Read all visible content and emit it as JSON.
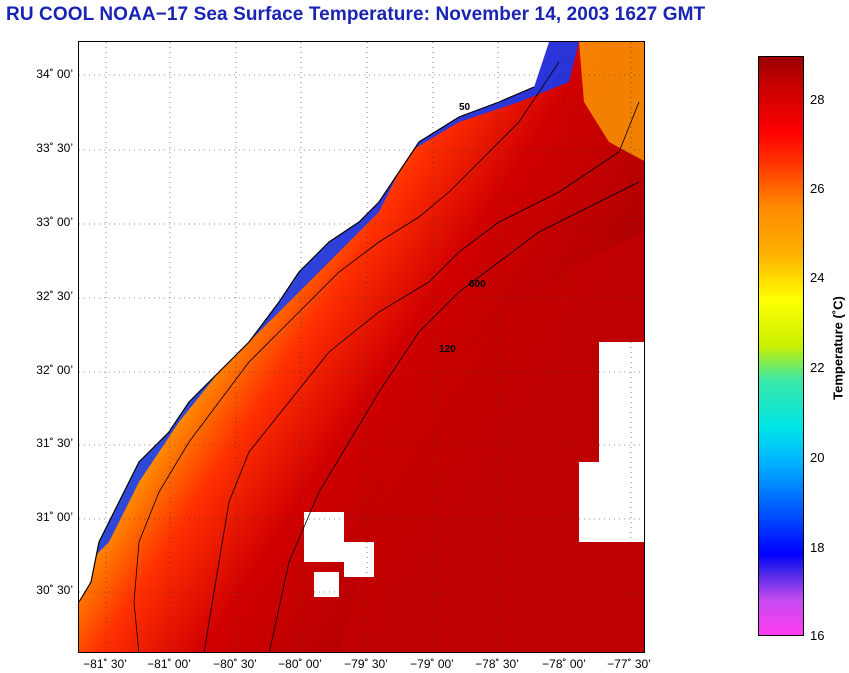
{
  "title": "RU COOL  NOAA−17  Sea Surface Temperature:  November 14, 2003 1627 GMT",
  "map": {
    "lat_labels": [
      "34˚ 00’",
      "33˚ 30’",
      "33˚ 00’",
      "32˚ 30’",
      "32˚ 00’",
      "31˚ 30’",
      "31˚ 00’",
      "30˚ 30’"
    ],
    "lon_labels": [
      "−81˚ 30’",
      "−81˚ 00’",
      "−80˚ 30’",
      "−80˚ 00’",
      "−79˚ 30’",
      "−79˚ 00’",
      "−78˚ 30’",
      "−78˚ 00’",
      "−77˚ 30’"
    ],
    "contour_labels": [
      "50",
      "120",
      "600"
    ]
  },
  "colorbar": {
    "title": "Temperature (˚C)",
    "ticks": [
      "28",
      "26",
      "24",
      "22",
      "20",
      "18",
      "16"
    ],
    "min": 16,
    "max": 29
  }
}
